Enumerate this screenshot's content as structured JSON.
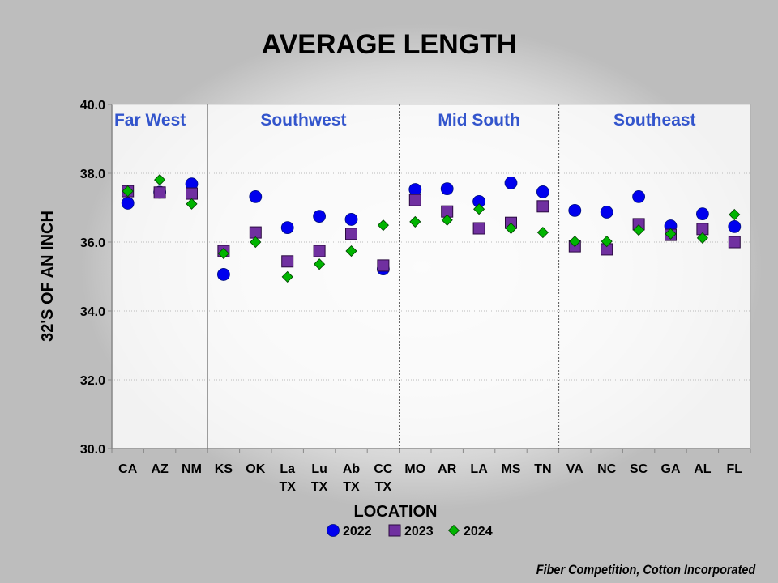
{
  "chart_data": {
    "type": "scatter",
    "title": "AVERAGE LENGTH",
    "xlabel": "LOCATION",
    "ylabel": "32'S OF AN INCH",
    "ylim": [
      30,
      40
    ],
    "yticks": [
      "30.0",
      "32.0",
      "34.0",
      "36.0",
      "38.0",
      "40.0"
    ],
    "grid": true,
    "legend_position": "bottom",
    "regions": [
      {
        "label": "Far West",
        "start": 0,
        "end": 2
      },
      {
        "label": "Southwest",
        "start": 3,
        "end": 8
      },
      {
        "label": "Mid South",
        "start": 9,
        "end": 13
      },
      {
        "label": "Southeast",
        "start": 14,
        "end": 19
      }
    ],
    "categories": [
      [
        "CA"
      ],
      [
        "AZ"
      ],
      [
        "NM"
      ],
      [
        "KS"
      ],
      [
        "OK"
      ],
      [
        "La",
        "TX"
      ],
      [
        "Lu",
        "TX"
      ],
      [
        "Ab",
        "TX"
      ],
      [
        "CC",
        "TX"
      ],
      [
        "MO"
      ],
      [
        "AR"
      ],
      [
        "LA"
      ],
      [
        "MS"
      ],
      [
        "TN"
      ],
      [
        "VA"
      ],
      [
        "NC"
      ],
      [
        "SC"
      ],
      [
        "GA"
      ],
      [
        "AL"
      ],
      [
        "FL"
      ]
    ],
    "series": [
      {
        "name": "2022",
        "marker": "circle",
        "color": "#0000ee",
        "values": [
          37.13,
          37.45,
          37.69,
          35.06,
          37.32,
          36.42,
          36.75,
          36.66,
          35.22,
          37.53,
          37.55,
          37.18,
          37.72,
          37.46,
          36.92,
          36.87,
          37.32,
          36.47,
          36.82,
          36.45
        ]
      },
      {
        "name": "2023",
        "marker": "square",
        "color": "#7030a0",
        "values": [
          37.48,
          37.44,
          37.41,
          35.74,
          36.28,
          35.44,
          35.74,
          36.24,
          35.32,
          37.22,
          36.89,
          36.4,
          36.56,
          37.04,
          35.88,
          35.79,
          36.52,
          36.21,
          36.38,
          36.0
        ]
      },
      {
        "name": "2024",
        "marker": "diamond",
        "color": "#00b400",
        "values": [
          37.48,
          37.81,
          37.11,
          35.67,
          36.0,
          34.99,
          35.36,
          35.74,
          36.49,
          36.59,
          36.64,
          36.96,
          36.4,
          36.28,
          36.02,
          36.02,
          36.35,
          36.24,
          36.12,
          36.8
        ]
      }
    ]
  },
  "footer": {
    "credit": "Fiber Competition, Cotton Incorporated"
  }
}
